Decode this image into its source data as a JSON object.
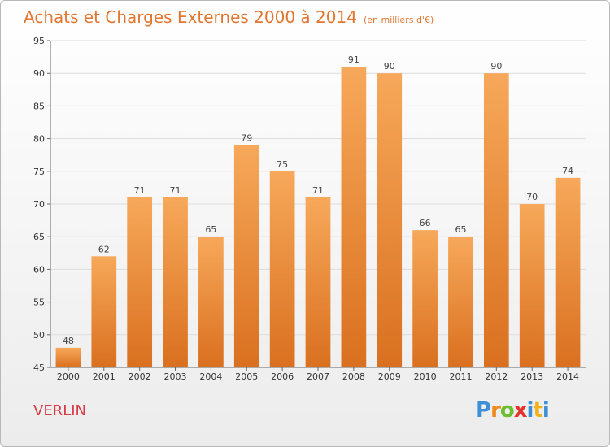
{
  "header": {
    "title": "Achats et Charges Externes 2000 à 2014",
    "unit": "(en milliers d'€)"
  },
  "footer": {
    "commune": "VERLIN",
    "logo_letters": [
      "P",
      "r",
      "o",
      "x",
      "i",
      "t",
      "i"
    ],
    "logo_colors": [
      "#3d8fd6",
      "#f08a1c",
      "#6cbf30",
      "#e2342d",
      "#3d8fd6",
      "#f2b318",
      "#3d8fd6"
    ]
  },
  "chart_data": {
    "type": "bar",
    "categories": [
      "2000",
      "2001",
      "2002",
      "2003",
      "2004",
      "2005",
      "2006",
      "2007",
      "2008",
      "2009",
      "2010",
      "2011",
      "2012",
      "2013",
      "2014"
    ],
    "values": [
      48,
      62,
      71,
      71,
      65,
      79,
      75,
      71,
      91,
      90,
      66,
      65,
      90,
      70,
      74
    ],
    "title": "Achats et Charges Externes 2000 à 2014",
    "xlabel": "",
    "ylabel": "",
    "ylim": [
      45,
      95
    ],
    "yticks": [
      45,
      50,
      55,
      60,
      65,
      70,
      75,
      80,
      85,
      90,
      95
    ],
    "grid": true,
    "bar_color_top": "#f7a85a",
    "bar_color_bottom": "#d9701f"
  }
}
